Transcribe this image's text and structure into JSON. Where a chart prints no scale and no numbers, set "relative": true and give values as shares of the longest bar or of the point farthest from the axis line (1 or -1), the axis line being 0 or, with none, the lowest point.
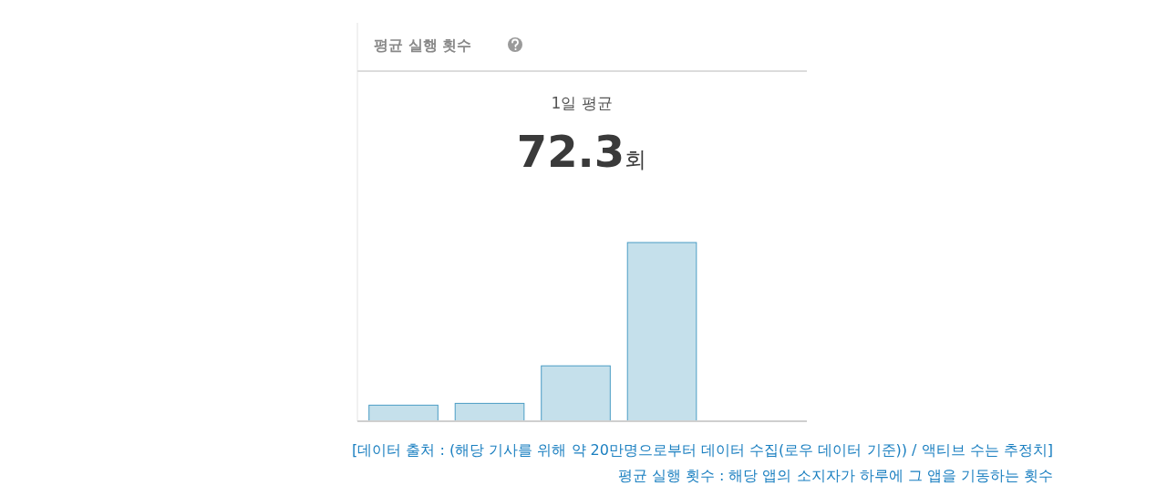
{
  "chart_data": {
    "type": "bar",
    "title": "평균 실행 횟수",
    "relative": true,
    "categories": [
      null,
      null,
      null,
      null
    ],
    "values": [
      0.09,
      0.1,
      0.31,
      1
    ],
    "color": "#c5e0eb",
    "annotations": [
      "1일 평균",
      "72.3회",
      "[데이터 출처 : (해당 기사를 위해 약 20만명으로부터 데이터 수집(로우 데이터 기준)) / 액티브 수는 추정치]",
      "평균 실행 횟수 : 해당 앱의 소지자가 하루에 그 앱을 기동하는 횟수"
    ]
  }
}
